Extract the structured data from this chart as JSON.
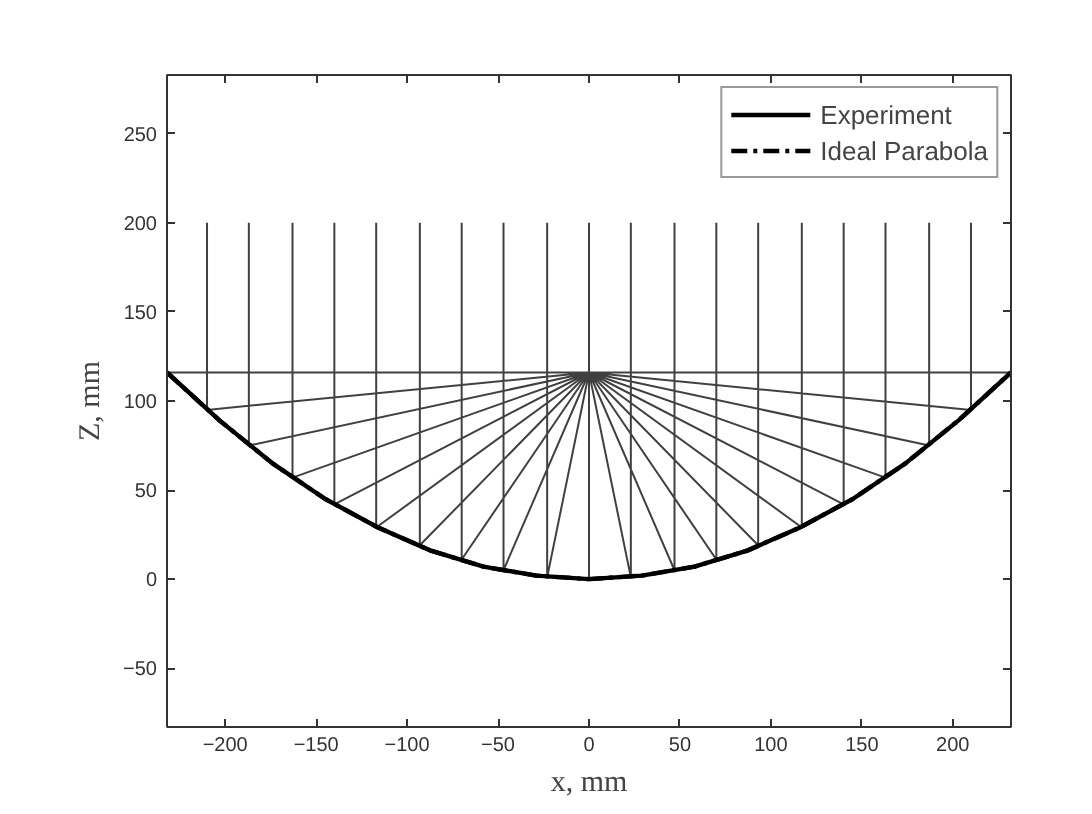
{
  "chart_data": {
    "type": "line",
    "xlabel": "x, mm",
    "ylabel": "Z, mm",
    "xlim": [
      -232,
      232
    ],
    "ylim": [
      -83,
      283
    ],
    "xticks": [
      -200,
      -150,
      -100,
      -50,
      0,
      50,
      100,
      150,
      200
    ],
    "yticks": [
      -50,
      0,
      50,
      100,
      150,
      200,
      250
    ],
    "grid": false,
    "legend": "top right",
    "marker": "none",
    "series": [
      {
        "name": "Experiment",
        "color": "#000000",
        "line_style": "solid",
        "x": [
          -232,
          -203,
          -174,
          -145,
          -116,
          -87,
          -58,
          -29,
          0,
          29,
          58,
          87,
          116,
          145,
          174,
          203,
          232
        ],
        "values": [
          116,
          89,
          65,
          45,
          29,
          16,
          7,
          2,
          0,
          2,
          7,
          16,
          29,
          45,
          65,
          89,
          116
        ]
      },
      {
        "name": "Ideal Parabola",
        "color": "#000000",
        "line_style": "dashed",
        "x": [
          -232,
          -203,
          -174,
          -145,
          -116,
          -87,
          -58,
          -29,
          0,
          29,
          58,
          87,
          116,
          145,
          174,
          203,
          232
        ],
        "values": [
          116,
          89,
          65,
          45,
          29,
          16,
          7,
          2,
          0,
          2,
          7,
          16,
          29,
          45,
          65,
          89,
          116
        ]
      },
      {
        "color": "#000000",
        "line_style": "solid",
        "x": [
          -232,
          232,
          null,
          -210,
          -210,
          0,
          null,
          -187,
          -187,
          0,
          null,
          -163,
          -163,
          0,
          null,
          -140,
          -140,
          0,
          null,
          -117,
          -117,
          0,
          null,
          -93,
          -93,
          0,
          null,
          -70,
          -70,
          0,
          null,
          -47,
          -47,
          0,
          null,
          -23,
          -23,
          0,
          null,
          0,
          0,
          null,
          23,
          23,
          0,
          null,
          47,
          47,
          0,
          null,
          70,
          70,
          0,
          null,
          93,
          93,
          0,
          null,
          117,
          117,
          0,
          null,
          140,
          140,
          0,
          null,
          163,
          163,
          0,
          null,
          187,
          187,
          0,
          null,
          210,
          210,
          0
        ],
        "values": [
          116,
          116,
          null,
          200,
          95,
          116,
          null,
          200,
          75,
          116,
          null,
          200,
          57,
          116,
          null,
          200,
          42,
          116,
          null,
          200,
          29,
          116,
          null,
          200,
          19,
          116,
          null,
          200,
          11,
          116,
          null,
          200,
          5,
          116,
          null,
          200,
          1,
          116,
          null,
          200,
          0,
          null,
          200,
          1,
          116,
          null,
          200,
          5,
          116,
          null,
          200,
          11,
          116,
          null,
          200,
          19,
          116,
          null,
          200,
          29,
          116,
          null,
          200,
          42,
          116,
          null,
          200,
          57,
          116,
          null,
          200,
          75,
          116,
          null,
          200,
          95,
          116
        ]
      }
    ]
  }
}
